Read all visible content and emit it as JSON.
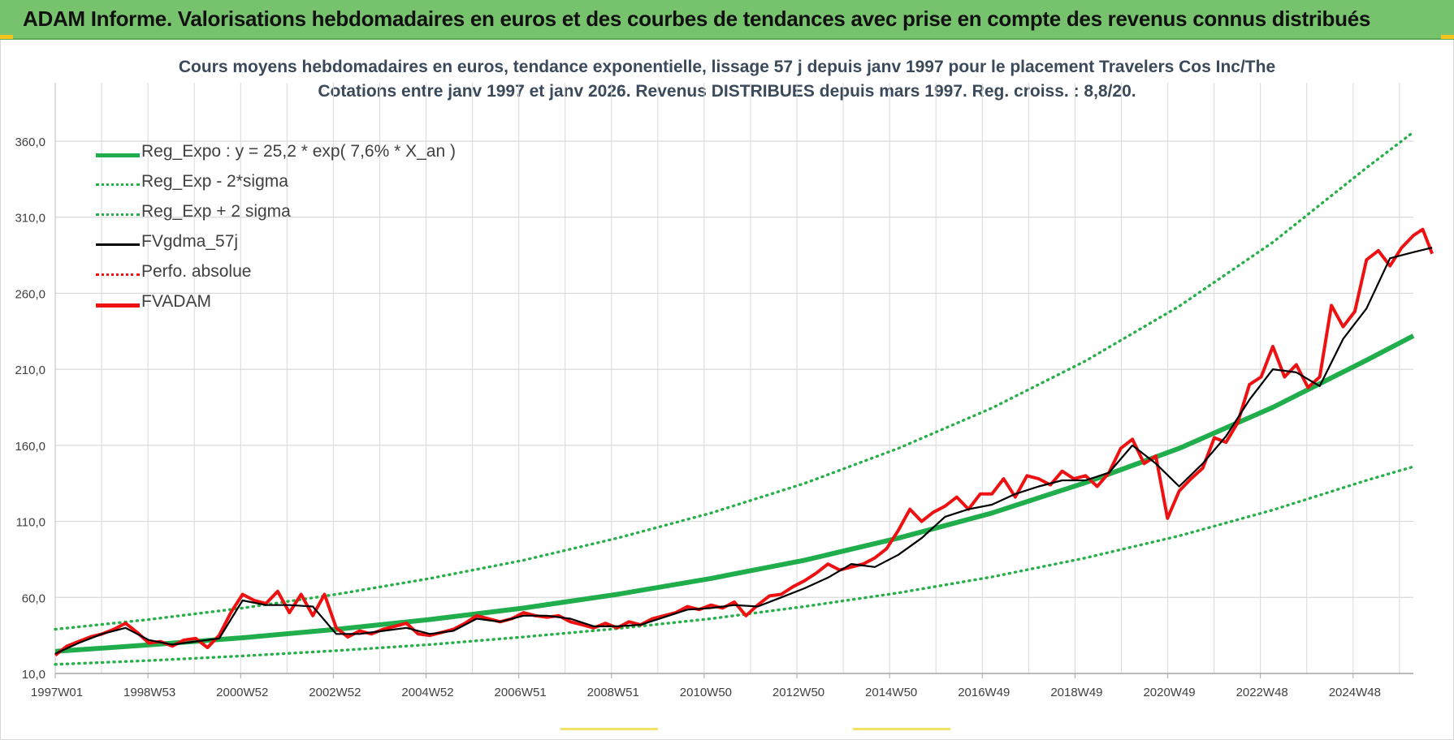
{
  "banner": {
    "title": "ADAM Informe. Valorisations hebdomadaires en euros et des courbes de tendances avec prise en compte des revenus connus distribués"
  },
  "colors": {
    "banner_bg": "#77c26d",
    "trend_green": "#1fae4b",
    "dotted_green": "#27b04a",
    "black": "#000000",
    "red": "#ee1111",
    "title_text": "#3b4a5a",
    "grid": "#d9d9d9"
  },
  "chart_data": {
    "type": "line",
    "title": "Cours moyens hebdomadaires en euros, tendance exponentielle, lissage 57 j depuis janv 1997 pour le placement Travelers Cos Inc/The",
    "subtitle": "Cotations entre janv 1997 et janv 2026. Revenus DISTRIBUES depuis mars 1997.  Reg. croiss. : 8,8/20.",
    "xlabel": "",
    "ylabel": "",
    "ylim": [
      10,
      360
    ],
    "xlim": [
      1997.0,
      2026.0
    ],
    "y_ticks": [
      "10,0",
      "60,0",
      "110,0",
      "160,0",
      "210,0",
      "260,0",
      "310,0",
      "360,0"
    ],
    "x_tick_labels": [
      "1997W01",
      "1998W53",
      "2000W52",
      "2002W52",
      "2004W52",
      "2006W51",
      "2008W51",
      "2010W50",
      "2012W50",
      "2014W50",
      "2016W49",
      "2018W49",
      "2020W49",
      "2022W48",
      "2024W48"
    ],
    "grid": true,
    "legend_position": "top-left",
    "legend": [
      "Reg_Expo : y = 25,2 * exp( 7,6% *  X_an )",
      "Reg_Exp - 2*sigma",
      "Reg_Exp + 2 sigma",
      "FVgdma_57j",
      "Perfo. absolue",
      "FVADAM"
    ],
    "series": [
      {
        "name": "Reg_Expo : y = 25,2 * exp( 7,6% *  X_an )",
        "style": "solid-thick",
        "color": "#1fae4b",
        "points": [
          [
            1997.0,
            24.5
          ],
          [
            1999.0,
            28.8
          ],
          [
            2001.0,
            33.5
          ],
          [
            2003.0,
            39.0
          ],
          [
            2005.0,
            45.5
          ],
          [
            2007.0,
            53.0
          ],
          [
            2009.0,
            62.0
          ],
          [
            2011.0,
            72.5
          ],
          [
            2013.0,
            84.5
          ],
          [
            2015.0,
            99.0
          ],
          [
            2017.0,
            115.5
          ],
          [
            2019.0,
            135.5
          ],
          [
            2021.0,
            158.0
          ],
          [
            2023.0,
            185.0
          ],
          [
            2025.0,
            216.0
          ],
          [
            2026.0,
            232.0
          ]
        ]
      },
      {
        "name": "Reg_Exp - 2*sigma",
        "style": "dotted",
        "color": "#27b04a",
        "points": [
          [
            1997.0,
            16.0
          ],
          [
            1999.0,
            18.5
          ],
          [
            2001.0,
            21.5
          ],
          [
            2003.0,
            25.0
          ],
          [
            2005.0,
            29.0
          ],
          [
            2007.0,
            34.0
          ],
          [
            2009.0,
            39.5
          ],
          [
            2011.0,
            46.0
          ],
          [
            2013.0,
            54.0
          ],
          [
            2015.0,
            63.0
          ],
          [
            2017.0,
            73.5
          ],
          [
            2019.0,
            86.0
          ],
          [
            2021.0,
            100.5
          ],
          [
            2023.0,
            117.5
          ],
          [
            2025.0,
            137.0
          ],
          [
            2026.0,
            146.0
          ]
        ]
      },
      {
        "name": "Reg_Exp + 2 sigma",
        "style": "dotted",
        "color": "#27b04a",
        "points": [
          [
            1997.0,
            39.0
          ],
          [
            1999.0,
            45.5
          ],
          [
            2001.0,
            53.0
          ],
          [
            2003.0,
            62.0
          ],
          [
            2005.0,
            72.5
          ],
          [
            2007.0,
            84.5
          ],
          [
            2009.0,
            99.0
          ],
          [
            2011.0,
            115.5
          ],
          [
            2013.0,
            135.0
          ],
          [
            2015.0,
            158.0
          ],
          [
            2017.0,
            184.5
          ],
          [
            2019.0,
            215.5
          ],
          [
            2021.0,
            251.5
          ],
          [
            2023.0,
            293.5
          ],
          [
            2025.0,
            342.5
          ],
          [
            2026.0,
            366.0
          ]
        ]
      },
      {
        "name": "FVgdma_57j",
        "style": "solid",
        "color": "#000000",
        "points": [
          [
            1997.0,
            23
          ],
          [
            1997.5,
            30
          ],
          [
            1998.0,
            36
          ],
          [
            1998.5,
            40
          ],
          [
            1999.0,
            32
          ],
          [
            1999.5,
            29
          ],
          [
            2000.0,
            31
          ],
          [
            2000.5,
            33
          ],
          [
            2001.0,
            58
          ],
          [
            2001.5,
            55
          ],
          [
            2002.0,
            55
          ],
          [
            2002.5,
            54
          ],
          [
            2003.0,
            36
          ],
          [
            2003.5,
            36
          ],
          [
            2004.0,
            38
          ],
          [
            2004.5,
            40
          ],
          [
            2005.0,
            36
          ],
          [
            2005.5,
            38
          ],
          [
            2006.0,
            46
          ],
          [
            2006.5,
            44
          ],
          [
            2007.0,
            48
          ],
          [
            2007.5,
            48
          ],
          [
            2008.0,
            46
          ],
          [
            2008.5,
            41
          ],
          [
            2009.0,
            41
          ],
          [
            2009.5,
            42
          ],
          [
            2010.0,
            47
          ],
          [
            2010.5,
            52
          ],
          [
            2011.0,
            53
          ],
          [
            2011.5,
            55
          ],
          [
            2012.0,
            54
          ],
          [
            2012.5,
            60
          ],
          [
            2013.0,
            66
          ],
          [
            2013.5,
            73
          ],
          [
            2014.0,
            82
          ],
          [
            2014.5,
            80
          ],
          [
            2015.0,
            88
          ],
          [
            2015.5,
            99
          ],
          [
            2016.0,
            113
          ],
          [
            2016.5,
            118
          ],
          [
            2017.0,
            121
          ],
          [
            2017.5,
            128
          ],
          [
            2018.0,
            133
          ],
          [
            2018.5,
            137
          ],
          [
            2019.0,
            137
          ],
          [
            2019.5,
            142
          ],
          [
            2020.0,
            160
          ],
          [
            2020.5,
            148
          ],
          [
            2021.0,
            133
          ],
          [
            2021.5,
            148
          ],
          [
            2022.0,
            166
          ],
          [
            2022.5,
            190
          ],
          [
            2023.0,
            210
          ],
          [
            2023.5,
            208
          ],
          [
            2024.0,
            199
          ],
          [
            2024.5,
            230
          ],
          [
            2025.0,
            250
          ],
          [
            2025.5,
            283
          ],
          [
            2026.0,
            287
          ],
          [
            2026.4,
            290
          ]
        ]
      },
      {
        "name": "Perfo. absolue",
        "style": "dotted",
        "color": "#ee1111",
        "points": []
      },
      {
        "name": "FVADAM",
        "style": "solid-thick",
        "color": "#ee1111",
        "points": [
          [
            1997.0,
            22
          ],
          [
            1997.25,
            28
          ],
          [
            1997.5,
            31
          ],
          [
            1997.75,
            34
          ],
          [
            1998.0,
            36
          ],
          [
            1998.25,
            39
          ],
          [
            1998.5,
            43
          ],
          [
            1998.75,
            37
          ],
          [
            1999.0,
            30
          ],
          [
            1999.25,
            31
          ],
          [
            1999.5,
            28
          ],
          [
            1999.75,
            32
          ],
          [
            2000.0,
            33
          ],
          [
            2000.25,
            27
          ],
          [
            2000.5,
            35
          ],
          [
            2000.75,
            50
          ],
          [
            2001.0,
            62
          ],
          [
            2001.25,
            58
          ],
          [
            2001.5,
            56
          ],
          [
            2001.75,
            64
          ],
          [
            2002.0,
            50
          ],
          [
            2002.25,
            62
          ],
          [
            2002.5,
            48
          ],
          [
            2002.75,
            62
          ],
          [
            2003.0,
            40
          ],
          [
            2003.25,
            34
          ],
          [
            2003.5,
            38
          ],
          [
            2003.75,
            36
          ],
          [
            2004.0,
            39
          ],
          [
            2004.25,
            41
          ],
          [
            2004.5,
            43
          ],
          [
            2004.75,
            36
          ],
          [
            2005.0,
            35
          ],
          [
            2005.25,
            37
          ],
          [
            2005.5,
            39
          ],
          [
            2005.75,
            43
          ],
          [
            2006.0,
            48
          ],
          [
            2006.25,
            46
          ],
          [
            2006.5,
            44
          ],
          [
            2006.75,
            46
          ],
          [
            2007.0,
            50
          ],
          [
            2007.25,
            48
          ],
          [
            2007.5,
            47
          ],
          [
            2007.75,
            48
          ],
          [
            2008.0,
            44
          ],
          [
            2008.25,
            42
          ],
          [
            2008.5,
            40
          ],
          [
            2008.75,
            43
          ],
          [
            2009.0,
            40
          ],
          [
            2009.25,
            44
          ],
          [
            2009.5,
            42
          ],
          [
            2009.75,
            46
          ],
          [
            2010.0,
            48
          ],
          [
            2010.25,
            50
          ],
          [
            2010.5,
            54
          ],
          [
            2010.75,
            52
          ],
          [
            2011.0,
            55
          ],
          [
            2011.25,
            53
          ],
          [
            2011.5,
            57
          ],
          [
            2011.75,
            48
          ],
          [
            2012.0,
            55
          ],
          [
            2012.25,
            61
          ],
          [
            2012.5,
            62
          ],
          [
            2012.75,
            67
          ],
          [
            2013.0,
            71
          ],
          [
            2013.25,
            76
          ],
          [
            2013.5,
            82
          ],
          [
            2013.75,
            78
          ],
          [
            2014.0,
            80
          ],
          [
            2014.25,
            82
          ],
          [
            2014.5,
            86
          ],
          [
            2014.75,
            92
          ],
          [
            2015.0,
            104
          ],
          [
            2015.25,
            118
          ],
          [
            2015.5,
            110
          ],
          [
            2015.75,
            116
          ],
          [
            2016.0,
            120
          ],
          [
            2016.25,
            126
          ],
          [
            2016.5,
            118
          ],
          [
            2016.75,
            128
          ],
          [
            2017.0,
            128
          ],
          [
            2017.25,
            138
          ],
          [
            2017.5,
            126
          ],
          [
            2017.75,
            140
          ],
          [
            2018.0,
            138
          ],
          [
            2018.25,
            134
          ],
          [
            2018.5,
            143
          ],
          [
            2018.75,
            138
          ],
          [
            2019.0,
            140
          ],
          [
            2019.25,
            133
          ],
          [
            2019.5,
            142
          ],
          [
            2019.75,
            158
          ],
          [
            2020.0,
            164
          ],
          [
            2020.25,
            148
          ],
          [
            2020.5,
            153
          ],
          [
            2020.75,
            112
          ],
          [
            2021.0,
            130
          ],
          [
            2021.25,
            138
          ],
          [
            2021.5,
            145
          ],
          [
            2021.75,
            165
          ],
          [
            2022.0,
            162
          ],
          [
            2022.25,
            175
          ],
          [
            2022.5,
            200
          ],
          [
            2022.75,
            205
          ],
          [
            2023.0,
            225
          ],
          [
            2023.25,
            205
          ],
          [
            2023.5,
            213
          ],
          [
            2023.75,
            198
          ],
          [
            2024.0,
            205
          ],
          [
            2024.25,
            252
          ],
          [
            2024.5,
            238
          ],
          [
            2024.75,
            248
          ],
          [
            2025.0,
            282
          ],
          [
            2025.25,
            288
          ],
          [
            2025.5,
            278
          ],
          [
            2025.75,
            290
          ],
          [
            2026.0,
            298
          ],
          [
            2026.2,
            302
          ],
          [
            2026.4,
            286
          ]
        ]
      }
    ]
  }
}
